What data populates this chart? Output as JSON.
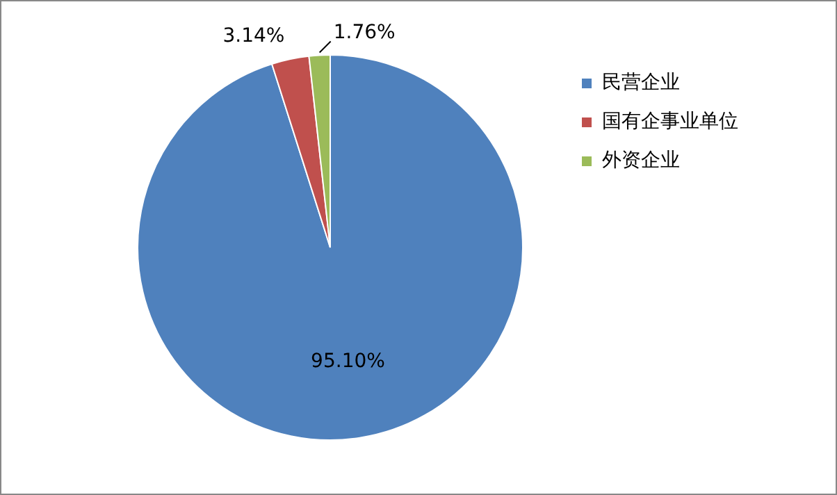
{
  "chart_data": {
    "type": "pie",
    "categories": [
      "民营企业",
      "国有企事业单位",
      "外资企业"
    ],
    "values": [
      95.1,
      3.14,
      1.76
    ],
    "colors": [
      "#4f81bd",
      "#c0504d",
      "#9bbb59"
    ],
    "value_labels": [
      "95.10%",
      "3.14%",
      "1.76%"
    ],
    "legend": "top right"
  }
}
